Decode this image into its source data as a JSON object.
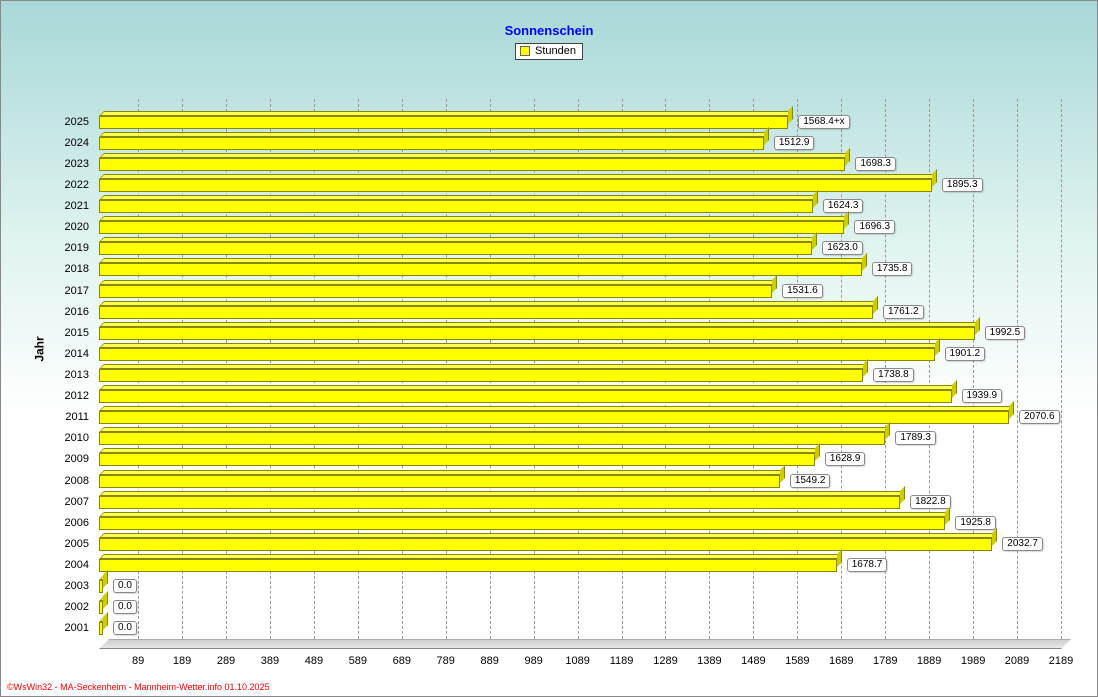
{
  "chart": {
    "title": "Sonnenschein",
    "legend_label": "Stunden",
    "ylabel": "Jahr",
    "type": "horizontal-bar-3d",
    "bar_fill": "#ffff00",
    "bar_top": "#ffff50",
    "bar_side": "#cccc00",
    "grid_color": "#999999",
    "title_color": "#0000ff",
    "background_gradient_top": "#a8d8d8",
    "background_gradient_bottom": "#ffffff",
    "title_fontsize": 13,
    "tick_fontsize": 11,
    "xmin": 0,
    "xmax": 2189,
    "xticks": [
      89,
      189,
      289,
      389,
      489,
      589,
      689,
      789,
      889,
      989,
      1089,
      1189,
      1289,
      1389,
      1489,
      1589,
      1689,
      1789,
      1889,
      1989,
      2089,
      2189
    ],
    "years": [
      "2025",
      "2024",
      "2023",
      "2022",
      "2021",
      "2020",
      "2019",
      "2018",
      "2017",
      "2016",
      "2015",
      "2014",
      "2013",
      "2012",
      "2011",
      "2010",
      "2009",
      "2008",
      "2007",
      "2006",
      "2005",
      "2004",
      "2003",
      "2002",
      "2001"
    ],
    "values": [
      1568.4,
      1512.9,
      1698.3,
      1895.3,
      1624.3,
      1696.3,
      1623.0,
      1735.8,
      1531.6,
      1761.2,
      1992.5,
      1901.2,
      1738.8,
      1939.9,
      2070.6,
      1789.3,
      1628.9,
      1549.2,
      1822.8,
      1925.8,
      2032.7,
      1678.7,
      0.0,
      0.0,
      0.0
    ],
    "value_labels": [
      "1568.4+x",
      "1512.9",
      "1698.3",
      "1895.3",
      "1624.3",
      "1696.3",
      "1623.0",
      "1735.8",
      "1531.6",
      "1761.2",
      "1992.5",
      "1901.2",
      "1738.8",
      "1939.9",
      "2070.6",
      "1789.3",
      "1628.9",
      "1549.2",
      "1822.8",
      "1925.8",
      "2032.7",
      "1678.7",
      "0.0",
      "0.0",
      "0.0"
    ]
  },
  "credit": "©WsWin32 - MA-Seckenheim - Mannheim-Wetter.info 01.10.2025"
}
